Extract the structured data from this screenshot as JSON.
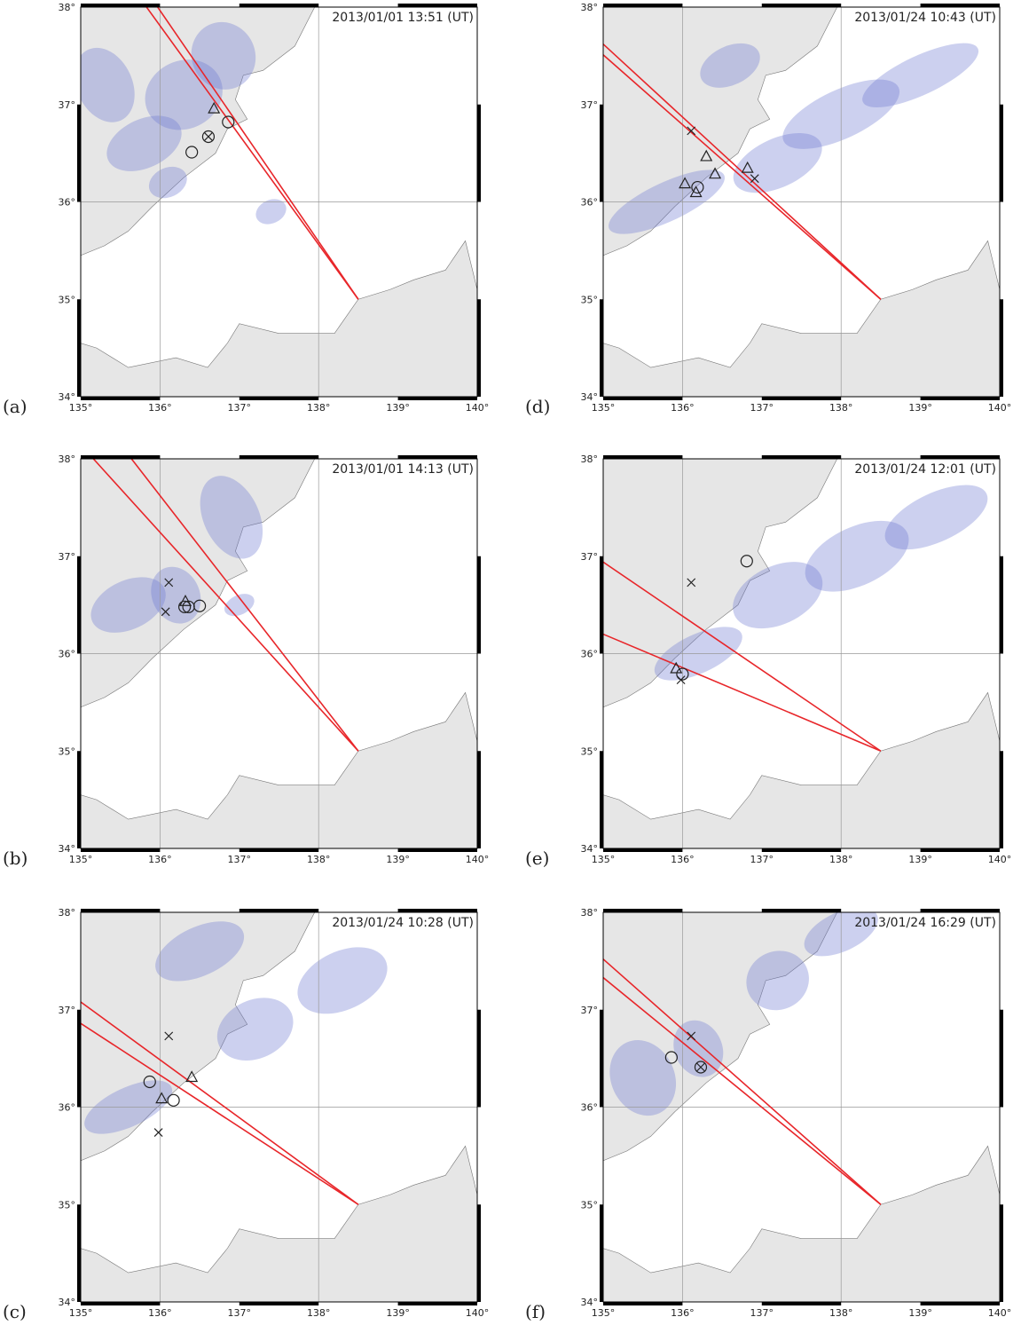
{
  "axes": {
    "xticks": [
      {
        "value": 135,
        "label": "135°"
      },
      {
        "value": 136,
        "label": "136°"
      },
      {
        "value": 137,
        "label": "137°"
      },
      {
        "value": 138,
        "label": "138°"
      },
      {
        "value": 139,
        "label": "139°"
      },
      {
        "value": 140,
        "label": "140°"
      }
    ],
    "yticks": [
      {
        "value": 34,
        "label": "34°"
      },
      {
        "value": 35,
        "label": "35°"
      },
      {
        "value": 36,
        "label": "36°"
      },
      {
        "value": 37,
        "label": "37°"
      },
      {
        "value": 38,
        "label": "38°"
      }
    ]
  },
  "panels": [
    {
      "label": "(a)",
      "time": "2013/01/01 13:51 (UT)",
      "lines": [
        [
          [
            138.5,
            35.0
          ],
          [
            135.83,
            38.0
          ]
        ],
        [
          [
            138.5,
            35.0
          ],
          [
            135.97,
            38.0
          ]
        ]
      ],
      "circles": [
        [
          136.86,
          36.82
        ],
        [
          136.61,
          36.67
        ],
        [
          136.4,
          36.51
        ]
      ],
      "triangles": [
        [
          136.68,
          36.96
        ]
      ],
      "crosses": [
        [
          136.61,
          36.67
        ]
      ]
    },
    {
      "label": "(b)",
      "time": "2013/01/01 14:13 (UT)",
      "lines": [
        [
          [
            138.5,
            35.0
          ],
          [
            135.16,
            38.0
          ]
        ],
        [
          [
            138.5,
            35.0
          ],
          [
            135.64,
            38.0
          ]
        ]
      ],
      "circles": [
        [
          136.31,
          36.48
        ],
        [
          136.36,
          36.48
        ],
        [
          136.5,
          36.49
        ]
      ],
      "triangles": [
        [
          136.32,
          36.54
        ]
      ],
      "crosses": [
        [
          136.11,
          36.73
        ],
        [
          136.07,
          36.43
        ]
      ]
    },
    {
      "label": "(c)",
      "time": "2013/01/24 10:28 (UT)",
      "lines": [
        [
          [
            138.5,
            35.0
          ],
          [
            135.0,
            37.08
          ]
        ],
        [
          [
            138.5,
            35.0
          ],
          [
            135.0,
            36.86
          ]
        ]
      ],
      "circles": [
        [
          135.87,
          36.26
        ],
        [
          136.17,
          36.07
        ]
      ],
      "triangles": [
        [
          136.4,
          36.31
        ],
        [
          136.02,
          36.09
        ]
      ],
      "crosses": [
        [
          136.11,
          36.73
        ],
        [
          135.98,
          35.74
        ]
      ]
    },
    {
      "label": "(d)",
      "time": "2013/01/24 10:43 (UT)",
      "lines": [
        [
          [
            138.5,
            35.0
          ],
          [
            135.0,
            37.62
          ]
        ],
        [
          [
            138.5,
            35.0
          ],
          [
            135.0,
            37.51
          ]
        ]
      ],
      "circles": [
        [
          136.19,
          36.15
        ]
      ],
      "triangles": [
        [
          136.3,
          36.47
        ],
        [
          136.41,
          36.29
        ],
        [
          136.82,
          36.35
        ],
        [
          136.03,
          36.19
        ],
        [
          136.17,
          36.1
        ]
      ],
      "crosses": [
        [
          136.11,
          36.73
        ],
        [
          136.91,
          36.24
        ]
      ]
    },
    {
      "label": "(e)",
      "time": "2013/01/24 12:01 (UT)",
      "lines": [
        [
          [
            138.5,
            35.0
          ],
          [
            135.0,
            36.94
          ]
        ],
        [
          [
            138.5,
            35.0
          ],
          [
            135.0,
            36.2
          ]
        ]
      ],
      "circles": [
        [
          136.81,
          36.95
        ],
        [
          136.0,
          35.79
        ]
      ],
      "triangles": [
        [
          135.92,
          35.85
        ]
      ],
      "crosses": [
        [
          136.11,
          36.73
        ],
        [
          135.98,
          35.73
        ]
      ]
    },
    {
      "label": "(f)",
      "time": "2013/01/24 16:29 (UT)",
      "lines": [
        [
          [
            138.5,
            35.0
          ],
          [
            135.0,
            37.52
          ]
        ],
        [
          [
            138.5,
            35.0
          ],
          [
            135.0,
            37.33
          ]
        ]
      ],
      "circles": [
        [
          135.86,
          36.51
        ],
        [
          136.23,
          36.41
        ]
      ],
      "triangles": [],
      "crosses": [
        [
          136.11,
          36.73
        ],
        [
          136.23,
          36.41
        ]
      ]
    }
  ]
}
